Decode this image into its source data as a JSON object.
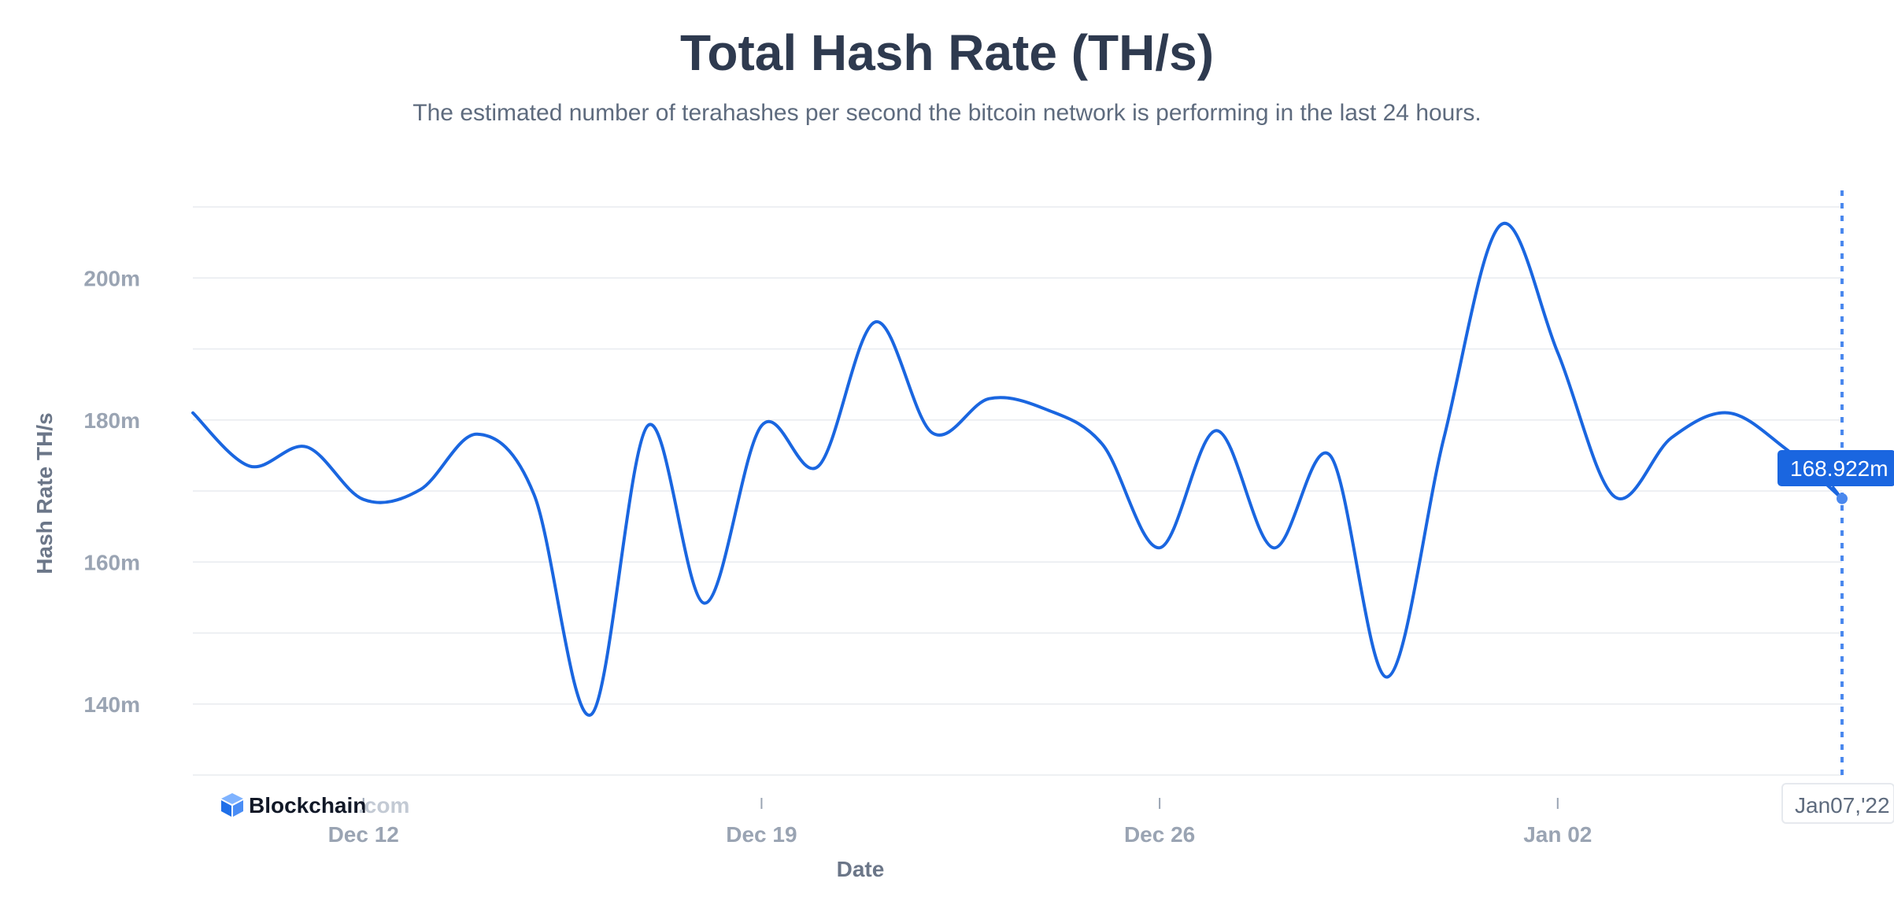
{
  "page": {
    "title": "Total Hash Rate (TH/s)",
    "subtitle": "The estimated number of terahashes per second the bitcoin network is performing in the last 24 hours."
  },
  "logo": {
    "word": "Blockchain",
    "suffix": ".com",
    "icon": "blockchain-cube-icon"
  },
  "colors": {
    "line": "#1a66e0",
    "tooltip": "#1a66e0",
    "crosshair": "#4a88ee"
  },
  "tooltip": {
    "value_label": "168.922m",
    "date_label": "Jan07,'22"
  },
  "chart_data": {
    "type": "line",
    "xlabel": "Date",
    "ylabel": "Hash Rate TH/s",
    "ylim": [
      130,
      210
    ],
    "yticks": [
      140,
      160,
      180,
      200
    ],
    "ytick_labels": [
      "140m",
      "160m",
      "180m",
      "200m"
    ],
    "xticks": [
      {
        "date": "2021-12-12",
        "label": "Dec 12"
      },
      {
        "date": "2021-12-19",
        "label": "Dec 19"
      },
      {
        "date": "2021-12-26",
        "label": "Dec 26"
      },
      {
        "date": "2022-01-02",
        "label": "Jan 02"
      }
    ],
    "xlim": [
      "2021-12-09",
      "2022-01-07"
    ],
    "grid": true,
    "series": [
      {
        "x": [
          "2021-12-09",
          "2021-12-10",
          "2021-12-11",
          "2021-12-12",
          "2021-12-13",
          "2021-12-14",
          "2021-12-15",
          "2021-12-16",
          "2021-12-17",
          "2021-12-18",
          "2021-12-19",
          "2021-12-20",
          "2021-12-21",
          "2021-12-22",
          "2021-12-23",
          "2021-12-24",
          "2021-12-25",
          "2021-12-26",
          "2021-12-27",
          "2021-12-28",
          "2021-12-29",
          "2021-12-30",
          "2021-12-31",
          "2022-01-01",
          "2022-01-02",
          "2022-01-03",
          "2022-01-04",
          "2022-01-05",
          "2022-01-06",
          "2022-01-07"
        ],
        "values": [
          181,
          173.5,
          176.2,
          168.8,
          170.2,
          178,
          169.5,
          138.5,
          179.2,
          154.2,
          179.2,
          173.5,
          193.8,
          178.2,
          183,
          181.5,
          176.5,
          162,
          178.5,
          162,
          175,
          143.8,
          177.5,
          207.5,
          189.5,
          169.2,
          177.5,
          181,
          176,
          168.922
        ]
      }
    ]
  }
}
